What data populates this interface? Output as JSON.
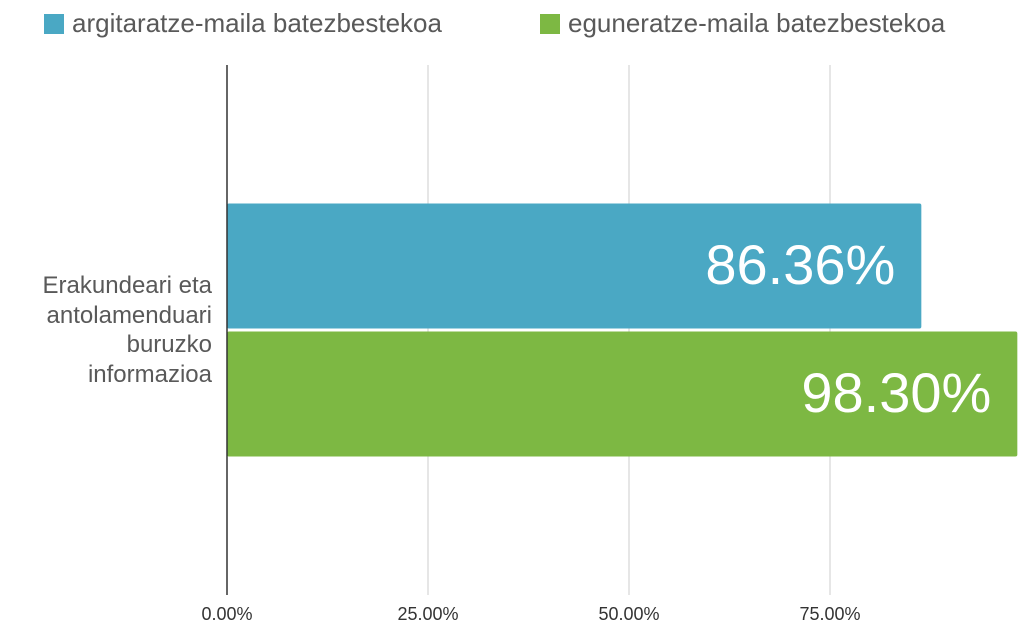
{
  "chart_data": {
    "type": "hbar",
    "categories": [
      "Erakundeari eta antolamenduari buruzko informazioa"
    ],
    "series": [
      {
        "name": "argitaratze-maila batezbestekoa",
        "color": "#4aa8c4",
        "values": [
          86.36
        ],
        "value_labels": [
          "86.36%"
        ]
      },
      {
        "name": "eguneratze-maila batezbestekoa",
        "color": "#7db843",
        "values": [
          98.3
        ],
        "value_labels": [
          "98.30%"
        ]
      }
    ],
    "xlim": [
      0,
      100
    ],
    "xticks": [
      {
        "value": 0,
        "label": "0.00%"
      },
      {
        "value": 25,
        "label": "25.00%"
      },
      {
        "value": 50,
        "label": "50.00%"
      },
      {
        "value": 75,
        "label": "75.00%"
      }
    ],
    "grid": true,
    "legend": "top"
  }
}
